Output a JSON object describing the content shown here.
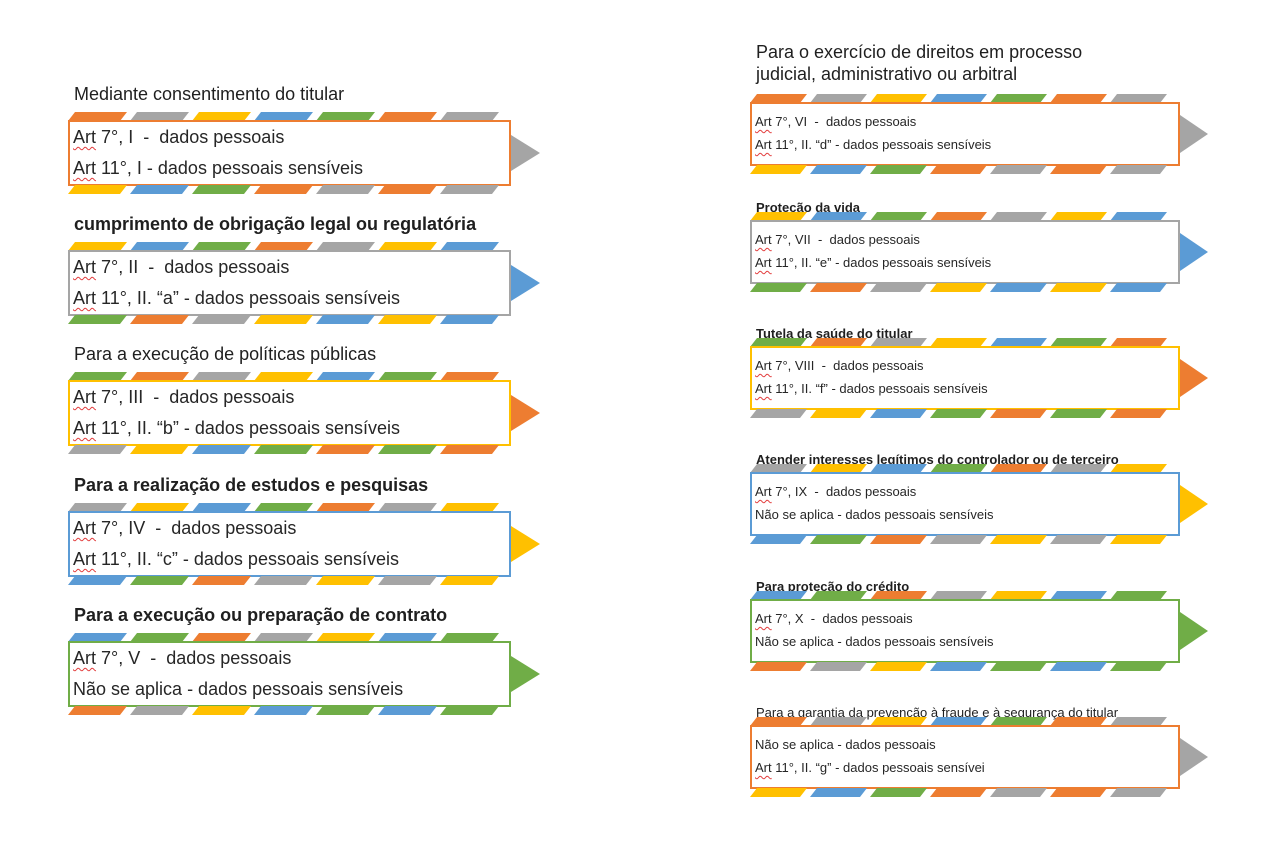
{
  "colors": {
    "orange": "#ed7d31",
    "gray": "#a5a5a5",
    "yellow": "#ffc000",
    "blue": "#5b9bd5",
    "green": "#70ad47"
  },
  "left_column": [
    {
      "title": "Mediante consentimento do titular",
      "title_bold": false,
      "border_color": "orange",
      "arrow_color": "gray",
      "stripe_pattern": [
        "orange",
        "gray",
        "yellow",
        "blue",
        "green",
        "orange",
        "gray"
      ],
      "lines": [
        {
          "art": "Art",
          "rest": " 7°, I  -  dados pessoais"
        },
        {
          "art": "Art",
          "rest": " 11°, I - dados pessoais sensíveis"
        }
      ]
    },
    {
      "title": "cumprimento de obrigação legal ou regulatória",
      "title_bold": true,
      "border_color": "gray",
      "arrow_color": "blue",
      "stripe_pattern": [
        "yellow",
        "blue",
        "green",
        "orange",
        "gray",
        "yellow",
        "blue"
      ],
      "lines": [
        {
          "art": "Art",
          "rest": " 7°, II  -  dados pessoais"
        },
        {
          "art": "Art",
          "rest": " 11°, II. “a” - dados pessoais sensíveis"
        }
      ]
    },
    {
      "title": "Para a execução de políticas públicas",
      "title_bold": false,
      "border_color": "yellow",
      "arrow_color": "orange",
      "stripe_pattern": [
        "green",
        "orange",
        "gray",
        "yellow",
        "blue",
        "green",
        "orange"
      ],
      "lines": [
        {
          "art": "Art",
          "rest": " 7°, III  -  dados pessoais"
        },
        {
          "art": "Art",
          "rest": " 11°, II. “b” - dados pessoais sensíveis"
        }
      ]
    },
    {
      "title": "Para a realização de estudos e pesquisas",
      "title_bold": true,
      "border_color": "blue",
      "arrow_color": "yellow",
      "stripe_pattern": [
        "gray",
        "yellow",
        "blue",
        "green",
        "orange",
        "gray",
        "yellow"
      ],
      "lines": [
        {
          "art": "Art",
          "rest": " 7°, IV  -  dados pessoais"
        },
        {
          "art": "Art",
          "rest": " 11°, II. “c” - dados pessoais sensíveis"
        }
      ]
    },
    {
      "title": "Para a execução ou preparação de contrato",
      "title_bold": true,
      "border_color": "green",
      "arrow_color": "green",
      "stripe_pattern": [
        "blue",
        "green",
        "orange",
        "gray",
        "yellow",
        "blue",
        "green"
      ],
      "lines": [
        {
          "art": "Art",
          "rest": " 7°, V  -  dados pessoais"
        },
        {
          "art": "",
          "rest": "Não se aplica - dados pessoais sensíveis"
        }
      ]
    }
  ],
  "right_column": [
    {
      "title": "Para o exercício de direitos em processo",
      "title2": "judicial, administrativo ou arbitral",
      "title_bold": false,
      "border_color": "orange",
      "arrow_color": "gray",
      "stripe_pattern": [
        "orange",
        "gray",
        "yellow",
        "blue",
        "green",
        "orange",
        "gray"
      ],
      "lines": [
        {
          "art": "Art",
          "rest": " 7°, VI  -  dados pessoais"
        },
        {
          "art": "Art",
          "rest": " 11°, II. “d” - dados pessoais sensíveis"
        }
      ]
    },
    {
      "title": "Proteção da vida",
      "title_bold": true,
      "border_color": "gray",
      "arrow_color": "blue",
      "stripe_pattern": [
        "yellow",
        "blue",
        "green",
        "orange",
        "gray",
        "yellow",
        "blue"
      ],
      "lines": [
        {
          "art": "Art",
          "rest": " 7°, VII  -  dados pessoais"
        },
        {
          "art": "Art",
          "rest": " 11°, II. “e” - dados pessoais sensíveis"
        }
      ]
    },
    {
      "title": "Tutela da saúde do titular",
      "title_bold": true,
      "border_color": "yellow",
      "arrow_color": "orange",
      "stripe_pattern": [
        "green",
        "orange",
        "gray",
        "yellow",
        "blue",
        "green",
        "orange"
      ],
      "lines": [
        {
          "art": "Art",
          "rest": " 7°, VIII  -  dados pessoais"
        },
        {
          "art": "Art",
          "rest": " 11°, II. “f” - dados pessoais sensíveis"
        }
      ]
    },
    {
      "title": "Atender interesses legítimos do controlador ou de terceiro",
      "title_bold": true,
      "border_color": "blue",
      "arrow_color": "yellow",
      "stripe_pattern": [
        "gray",
        "yellow",
        "blue",
        "green",
        "orange",
        "gray",
        "yellow"
      ],
      "lines": [
        {
          "art": "Art",
          "rest": " 7°, IX  -  dados pessoais"
        },
        {
          "art": "",
          "rest": "Não se aplica - dados pessoais sensíveis"
        }
      ]
    },
    {
      "title": "Para proteção do crédito",
      "title_bold": true,
      "border_color": "green",
      "arrow_color": "green",
      "stripe_pattern": [
        "blue",
        "green",
        "orange",
        "gray",
        "yellow",
        "blue",
        "green"
      ],
      "lines": [
        {
          "art": "Art",
          "rest": " 7°, X  -  dados pessoais"
        },
        {
          "art": "",
          "rest": "Não se aplica - dados pessoais sensíveis"
        }
      ]
    },
    {
      "title": "Para a garantia da prevenção à fraude e à segurança do titular",
      "title_bold": false,
      "border_color": "orange",
      "arrow_color": "gray",
      "stripe_pattern": [
        "orange",
        "gray",
        "yellow",
        "blue",
        "green",
        "orange",
        "gray"
      ],
      "lines": [
        {
          "art": "",
          "rest": "Não se aplica - dados pessoais"
        },
        {
          "art": "Art",
          "rest": " 11°, II. “g” - dados pessoais sensívei"
        }
      ]
    }
  ]
}
